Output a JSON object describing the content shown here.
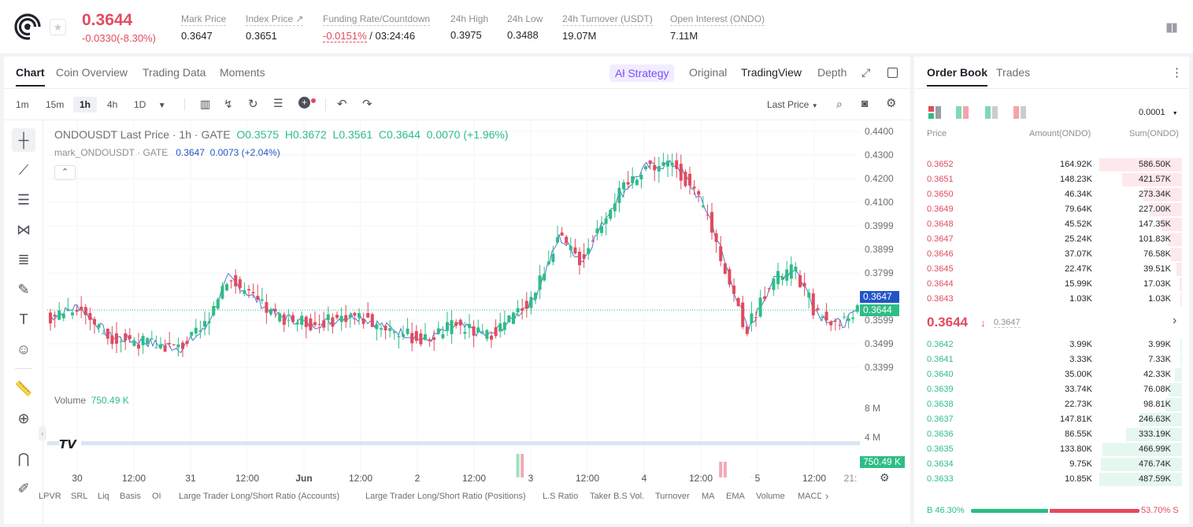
{
  "header": {
    "last_price": "0.3644",
    "change": "-0.0330(-8.30%)",
    "stats": [
      {
        "label": "Mark Price",
        "value": "0.3647",
        "x": 230
      },
      {
        "label": "Index Price ↗",
        "value": "0.3651",
        "x": 312
      },
      {
        "label": "Funding Rate/Countdown",
        "value_red": "-0.0151%",
        "value": " / 03:24:46",
        "x": 410
      },
      {
        "label": "24h High",
        "value": "0.3975",
        "x": 572
      },
      {
        "label": "24h Low",
        "value": "0.3488",
        "x": 644
      },
      {
        "label": "24h Turnover (USDT)",
        "value": "19.07M",
        "x": 714
      },
      {
        "label": "Open Interest (ONDO)",
        "value": "7.11M",
        "x": 851
      }
    ]
  },
  "chart_tabs": [
    "Chart",
    "Coin Overview",
    "Trading Data",
    "Moments"
  ],
  "view_tabs": {
    "strategy": "Aƚ Strategy",
    "original": "Original",
    "tradingview": "TradingView",
    "depth": "Depth"
  },
  "intervals": [
    "1m",
    "15m",
    "1h",
    "4h",
    "1D"
  ],
  "last_price_menu": "Last Price",
  "legend": {
    "symbol": "ONDOUSDT Last Price · 1h · GATE",
    "o": "O0.3575",
    "h": "H0.3672",
    "l": "L0.3561",
    "c": "C0.3644",
    "chg": "0.0070 (+1.96%)",
    "mark_label": "mark_ONDOUSDT · GATE",
    "mark_val": "0.3647",
    "mark_chg": "0.0073 (+2.04%)"
  },
  "volume": {
    "label": "Volume",
    "value": "750.49 K"
  },
  "y_axis": [
    "0.4400",
    "0.4300",
    "0.4200",
    "0.4100",
    "0.3999",
    "0.3899",
    "0.3799",
    "0.3599",
    "0.3499",
    "0.3399"
  ],
  "price_tags": {
    "mark": "0.3647",
    "last": "0.3644"
  },
  "vol_axis": [
    "8 M",
    "4 M"
  ],
  "x_axis": [
    "30",
    "12:00",
    "31",
    "12:00",
    "Jun",
    "12:00",
    "2",
    "12:00",
    "3",
    "12:00",
    "4",
    "12:00",
    "5",
    "12:00",
    "21:"
  ],
  "indicators": [
    "LPVR",
    "SRL",
    "Liq",
    "Basis",
    "OI",
    "Large Trader Long/Short Ratio (Accounts)",
    "Large Trader Long/Short Ratio (Positions)",
    "L.S Ratio",
    "Taker B.S Vol.",
    "Turnover",
    "MA",
    "EMA",
    "Volume",
    "MACD"
  ],
  "order_book": {
    "tabs": [
      "Order Book",
      "Trades"
    ],
    "precision": "0.0001",
    "headers": {
      "price": "Price",
      "amount": "Amount(ONDO)",
      "sum": "Sum(ONDO)"
    },
    "asks": [
      {
        "price": "0.3652",
        "amount": "164.92K",
        "sum": "586.50K",
        "depth": 1.0
      },
      {
        "price": "0.3651",
        "amount": "148.23K",
        "sum": "421.57K",
        "depth": 0.72
      },
      {
        "price": "0.3650",
        "amount": "46.34K",
        "sum": "273.34K",
        "depth": 0.47
      },
      {
        "price": "0.3649",
        "amount": "79.64K",
        "sum": "227.00K",
        "depth": 0.39
      },
      {
        "price": "0.3648",
        "amount": "45.52K",
        "sum": "147.35K",
        "depth": 0.25
      },
      {
        "price": "0.3647",
        "amount": "25.24K",
        "sum": "101.83K",
        "depth": 0.17
      },
      {
        "price": "0.3646",
        "amount": "37.07K",
        "sum": "76.58K",
        "depth": 0.13
      },
      {
        "price": "0.3645",
        "amount": "22.47K",
        "sum": "39.51K",
        "depth": 0.07
      },
      {
        "price": "0.3644",
        "amount": "15.99K",
        "sum": "17.03K",
        "depth": 0.03
      },
      {
        "price": "0.3643",
        "amount": "1.03K",
        "sum": "1.03K",
        "depth": 0.005
      }
    ],
    "mid_price": "0.3644",
    "mid_mark": "0.3647",
    "bids": [
      {
        "price": "0.3642",
        "amount": "3.99K",
        "sum": "3.99K",
        "depth": 0.008
      },
      {
        "price": "0.3641",
        "amount": "3.33K",
        "sum": "7.33K",
        "depth": 0.015
      },
      {
        "price": "0.3640",
        "amount": "35.00K",
        "sum": "42.33K",
        "depth": 0.09
      },
      {
        "price": "0.3639",
        "amount": "33.74K",
        "sum": "76.08K",
        "depth": 0.16
      },
      {
        "price": "0.3638",
        "amount": "22.73K",
        "sum": "98.81K",
        "depth": 0.2
      },
      {
        "price": "0.3637",
        "amount": "147.81K",
        "sum": "246.63K",
        "depth": 0.51
      },
      {
        "price": "0.3636",
        "amount": "86.55K",
        "sum": "333.19K",
        "depth": 0.68
      },
      {
        "price": "0.3635",
        "amount": "133.80K",
        "sum": "466.99K",
        "depth": 0.96
      },
      {
        "price": "0.3634",
        "amount": "9.75K",
        "sum": "476.74K",
        "depth": 0.98
      },
      {
        "price": "0.3633",
        "amount": "10.85K",
        "sum": "487.59K",
        "depth": 1.0
      }
    ],
    "buy_ratio": "B 46.30%",
    "sell_ratio": "53.70% S",
    "buy_fraction": 0.463
  },
  "colors": {
    "up": "#2ebd85",
    "down": "#e24b5f",
    "accent": "#7b4dfa"
  }
}
